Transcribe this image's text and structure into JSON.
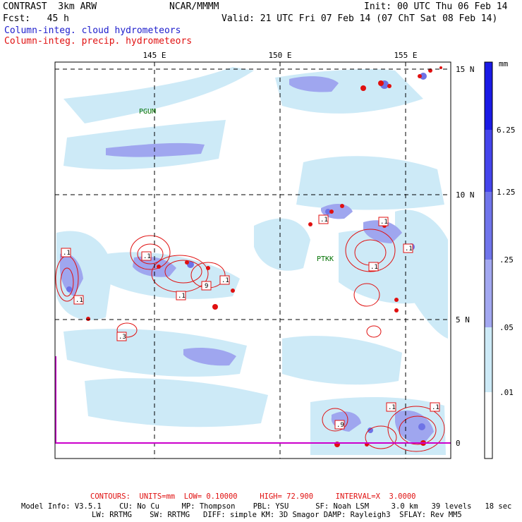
{
  "header": {
    "model": "CONTRAST  3km ARW",
    "center": "NCAR/MMMM",
    "init": "Init: 00 UTC Thu 06 Feb 14",
    "fcst": "Fcst:   45 h",
    "valid": "Valid: 21 UTC Fri 07 Feb 14 (07 ChT Sat 08 Feb 14)",
    "field1": "Column-integ. cloud hydrometeors",
    "field2": "Column-integ. precip. hydrometeors"
  },
  "map": {
    "lon_labels": [
      "145 E",
      "150 E",
      "155 E"
    ],
    "lat_labels": [
      "15 N",
      "10 N",
      "5 N",
      "0"
    ],
    "stations": [
      {
        "id": "PGUM",
        "label": "PGUM"
      },
      {
        "id": "PTKK",
        "label": "PTKK"
      }
    ],
    "contour_labels": [
      ".1",
      ".1",
      ".1",
      ".1",
      "9",
      ".1",
      ".3",
      ".1",
      ".1",
      ".1",
      ".1",
      ".9",
      ".1",
      ".1"
    ],
    "colors": {
      "frame": "#000000",
      "grid": "#000000",
      "contour": "#e01010",
      "station": "#007000",
      "equator": "#cc00cc",
      "cloud_light": "#cdeaf7",
      "cloud_mid": "#9fa6ef",
      "cloud_dark": "#6e73e6"
    }
  },
  "colorbar": {
    "unit": "mm",
    "levels": [
      "6.25",
      "1.25",
      ".25",
      ".05",
      ".01"
    ],
    "colors": [
      "#1a1ae6",
      "#4545ec",
      "#7075eb",
      "#a3a8f1",
      "#cdeaf7",
      "#ffffff"
    ]
  },
  "footer": {
    "contours": "CONTOURS:  UNITS=mm  LOW= 0.10000     HIGH= 72.900     INTERVAL=X  3.0000",
    "model_info1": "Model Info: V3.5.1    CU: No Cu     MP: Thompson    PBL: YSU      SF: Noah LSM     3.0 km   39 levels   18 sec",
    "model_info2": "LW: RRTMG    SW: RRTMG   DIFF: simple KM: 3D Smagor DAMP: Rayleigh3  SFLAY: Rev MM5"
  }
}
